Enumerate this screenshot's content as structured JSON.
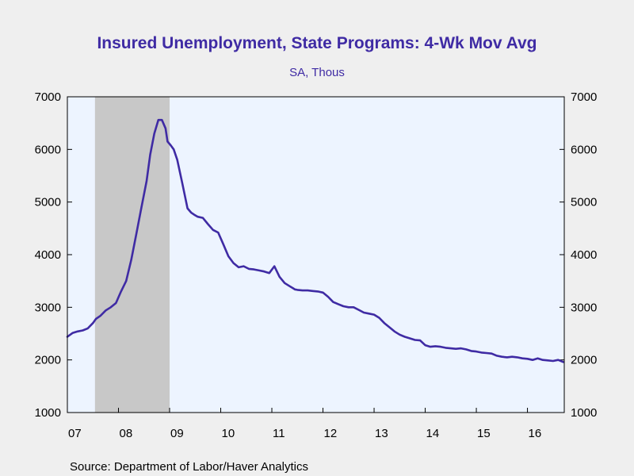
{
  "chart_data": {
    "type": "line",
    "title": "Insured Unemployment, State Programs: 4-Wk Mov Avg",
    "subtitle": "SA, Thous",
    "source": "Source:  Department of Labor/Haver Analytics",
    "x_tick_labels": [
      "07",
      "08",
      "09",
      "10",
      "11",
      "12",
      "13",
      "14",
      "15",
      "16"
    ],
    "x_tick_positions": [
      2007.0,
      2008.0,
      2009.0,
      2010.0,
      2011.0,
      2012.0,
      2013.0,
      2014.0,
      2015.0,
      2016.0
    ],
    "xlim": [
      2007.0,
      2016.72
    ],
    "ylim": [
      1000,
      7000
    ],
    "y_ticks": [
      1000,
      2000,
      3000,
      4000,
      5000,
      6000,
      7000
    ],
    "recession": {
      "start": 2007.54,
      "end": 2009.0
    },
    "colors": {
      "line": "#3f2ba4",
      "plot_bg": "#edf4ff",
      "recession": "#c8c8c8",
      "title": "#3f2ba4",
      "page_bg": "#efefef"
    },
    "series": [
      {
        "x": [
          2007.0,
          2007.1,
          2007.2,
          2007.3,
          2007.4,
          2007.5,
          2007.56,
          2007.65,
          2007.75,
          2007.85,
          2007.95,
          2008.05,
          2008.15,
          2008.25,
          2008.35,
          2008.45,
          2008.55,
          2008.62,
          2008.7,
          2008.78,
          2008.85,
          2008.92,
          2008.96,
          2009.02,
          2009.08,
          2009.15,
          2009.25,
          2009.35,
          2009.42,
          2009.48,
          2009.55,
          2009.65,
          2009.75,
          2009.85,
          2009.95,
          2010.05,
          2010.15,
          2010.25,
          2010.35,
          2010.45,
          2010.55,
          2010.65,
          2010.75,
          2010.85,
          2010.95,
          2011.05,
          2011.15,
          2011.25,
          2011.35,
          2011.42,
          2011.45,
          2011.5,
          2011.6,
          2011.7,
          2011.8,
          2011.9,
          2012.0,
          2012.1,
          2012.2,
          2012.3,
          2012.4,
          2012.5,
          2012.6,
          2012.7,
          2012.8,
          2012.9,
          2013.0,
          2013.1,
          2013.2,
          2013.3,
          2013.4,
          2013.5,
          2013.6,
          2013.7,
          2013.8,
          2013.9,
          2014.0,
          2014.1,
          2014.2,
          2014.3,
          2014.4,
          2014.5,
          2014.6,
          2014.7,
          2014.8,
          2014.9,
          2015.0,
          2015.1,
          2015.2,
          2015.3,
          2015.4,
          2015.5,
          2015.6,
          2015.7,
          2015.8,
          2015.9,
          2016.0,
          2016.1,
          2016.2,
          2016.3,
          2016.4,
          2016.5,
          2016.6,
          2016.7
        ],
        "values": [
          2440,
          2510,
          2540,
          2560,
          2600,
          2700,
          2780,
          2840,
          2940,
          3000,
          3080,
          3300,
          3500,
          3900,
          4400,
          4900,
          5400,
          5900,
          6300,
          6560,
          6560,
          6400,
          6150,
          6080,
          6000,
          5800,
          5350,
          4880,
          4800,
          4760,
          4720,
          4700,
          4580,
          4470,
          4420,
          4200,
          3970,
          3840,
          3760,
          3780,
          3730,
          3720,
          3700,
          3680,
          3650,
          3780,
          3580,
          3460,
          3400,
          3360,
          3340,
          3330,
          3320,
          3320,
          3310,
          3300,
          3280,
          3200,
          3100,
          3060,
          3020,
          3000,
          3000,
          2950,
          2900,
          2880,
          2860,
          2800,
          2700,
          2620,
          2540,
          2480,
          2440,
          2410,
          2380,
          2370,
          2280,
          2250,
          2260,
          2250,
          2230,
          2220,
          2210,
          2220,
          2200,
          2170,
          2160,
          2140,
          2130,
          2120,
          2080,
          2060,
          2050,
          2060,
          2050,
          2030,
          2020,
          2000,
          2030,
          2000,
          1990,
          1980,
          2000,
          1960
        ]
      }
    ]
  }
}
